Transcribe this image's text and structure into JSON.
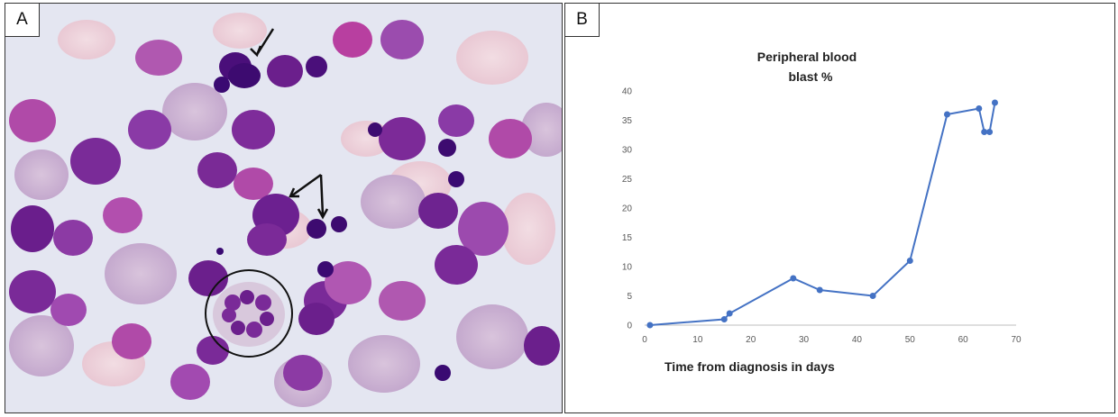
{
  "panel_a": {
    "label": "A"
  },
  "panel_b": {
    "label": "B"
  },
  "chart_data": {
    "type": "line",
    "title": [
      "Peripheral blood",
      "blast %"
    ],
    "xlabel": "Time from diagnosis in days",
    "ylabel": "",
    "xlim": [
      0,
      70
    ],
    "ylim": [
      0,
      40
    ],
    "xticks": [
      0,
      10,
      20,
      30,
      40,
      50,
      60,
      70
    ],
    "yticks": [
      0,
      5,
      10,
      15,
      20,
      25,
      30,
      35,
      40
    ],
    "grid": false,
    "series": [
      {
        "color": "#4472c4",
        "points": [
          {
            "x": 1,
            "y": 0
          },
          {
            "x": 15,
            "y": 1
          },
          {
            "x": 16,
            "y": 2
          },
          {
            "x": 28,
            "y": 8
          },
          {
            "x": 33,
            "y": 6
          },
          {
            "x": 43,
            "y": 5
          },
          {
            "x": 50,
            "y": 11
          },
          {
            "x": 57,
            "y": 36
          },
          {
            "x": 63,
            "y": 37
          },
          {
            "x": 64,
            "y": 33
          },
          {
            "x": 65,
            "y": 33
          },
          {
            "x": 66,
            "y": 38
          }
        ]
      }
    ]
  }
}
